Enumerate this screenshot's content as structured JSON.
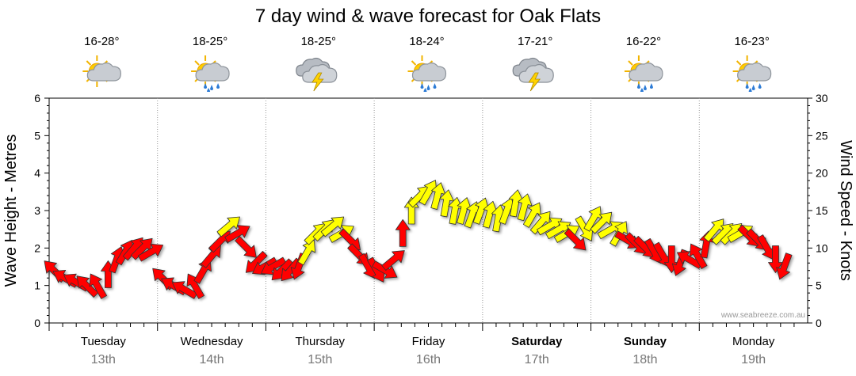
{
  "chart_data": {
    "type": "line",
    "title": "7 day wind & wave forecast for Oak Flats",
    "ylabel_left": "Wave Height - Metres",
    "ylabel_right": "Wind Speed - Knots",
    "ylim_left": [
      0,
      6
    ],
    "ylim_right": [
      0,
      30
    ],
    "yticks_left": [
      "0",
      "1",
      "2",
      "3",
      "4",
      "5",
      "6"
    ],
    "yticks_right": [
      "0",
      "5",
      "10",
      "15",
      "20",
      "25",
      "30"
    ],
    "grid": "vertical-dotted",
    "watermark": "www.seabreeze.com.au",
    "colors": {
      "low_wind": "#ff0000",
      "moderate_wind": "#ffff00",
      "outline": "#333333",
      "grid": "#999999"
    },
    "days": [
      {
        "day": "Tuesday",
        "date": "13th",
        "temp": "16-28°",
        "icon": "partly-cloudy-icon",
        "bold": false
      },
      {
        "day": "Wednesday",
        "date": "14th",
        "temp": "18-25°",
        "icon": "showers-icon",
        "bold": false
      },
      {
        "day": "Thursday",
        "date": "15th",
        "temp": "18-25°",
        "icon": "thunderstorm-icon",
        "bold": false
      },
      {
        "day": "Friday",
        "date": "16th",
        "temp": "18-24°",
        "icon": "showers-icon",
        "bold": false
      },
      {
        "day": "Saturday",
        "date": "17th",
        "temp": "17-21°",
        "icon": "thunderstorm-icon",
        "bold": true
      },
      {
        "day": "Sunday",
        "date": "18th",
        "temp": "16-22°",
        "icon": "showers-icon",
        "bold": true
      },
      {
        "day": "Monday",
        "date": "19th",
        "temp": "16-23°",
        "icon": "showers-icon",
        "bold": false
      }
    ],
    "series": [
      {
        "name": "Wind",
        "points": [
          [
            0.0,
            7.0,
            315,
            "r"
          ],
          [
            0.1,
            6.0,
            300,
            "r"
          ],
          [
            0.2,
            5.5,
            300,
            "r"
          ],
          [
            0.3,
            5.0,
            315,
            "r"
          ],
          [
            0.4,
            5.0,
            330,
            "r"
          ],
          [
            0.5,
            6.5,
            0,
            "r"
          ],
          [
            0.58,
            8.5,
            20,
            "r"
          ],
          [
            0.66,
            9.5,
            30,
            "r"
          ],
          [
            0.74,
            10.0,
            40,
            "r"
          ],
          [
            0.82,
            10.0,
            45,
            "r"
          ],
          [
            0.9,
            9.5,
            60,
            "r"
          ],
          [
            1.0,
            6.0,
            315,
            "r"
          ],
          [
            1.1,
            5.0,
            300,
            "r"
          ],
          [
            1.2,
            4.5,
            300,
            "r"
          ],
          [
            1.3,
            5.0,
            330,
            "r"
          ],
          [
            1.38,
            7.0,
            30,
            "r"
          ],
          [
            1.46,
            9.0,
            40,
            "r"
          ],
          [
            1.54,
            11.0,
            45,
            "r"
          ],
          [
            1.62,
            13.0,
            50,
            "y"
          ],
          [
            1.7,
            12.0,
            60,
            "r"
          ],
          [
            1.78,
            10.0,
            135,
            "r"
          ],
          [
            1.86,
            8.0,
            225,
            "r"
          ],
          [
            1.94,
            7.5,
            240,
            "r"
          ],
          [
            2.02,
            7.5,
            240,
            "r"
          ],
          [
            2.1,
            7.0,
            225,
            "r"
          ],
          [
            2.18,
            7.0,
            220,
            "r"
          ],
          [
            2.26,
            7.5,
            200,
            "r"
          ],
          [
            2.34,
            9.5,
            30,
            "y"
          ],
          [
            2.42,
            12.0,
            45,
            "y"
          ],
          [
            2.5,
            12.5,
            45,
            "y"
          ],
          [
            2.58,
            13.0,
            50,
            "y"
          ],
          [
            2.66,
            12.0,
            60,
            "y"
          ],
          [
            2.74,
            11.0,
            135,
            "r"
          ],
          [
            2.82,
            9.0,
            135,
            "r"
          ],
          [
            2.9,
            7.5,
            150,
            "r"
          ],
          [
            2.98,
            7.0,
            150,
            "r"
          ],
          [
            3.06,
            7.0,
            120,
            "r"
          ],
          [
            3.14,
            8.5,
            50,
            "r"
          ],
          [
            3.22,
            12.0,
            0,
            "r"
          ],
          [
            3.3,
            15.0,
            0,
            "y"
          ],
          [
            3.38,
            17.0,
            45,
            "y"
          ],
          [
            3.46,
            17.5,
            30,
            "y"
          ],
          [
            3.54,
            17.0,
            15,
            "y"
          ],
          [
            3.62,
            16.0,
            10,
            "y"
          ],
          [
            3.7,
            15.0,
            10,
            "y"
          ],
          [
            3.78,
            15.0,
            15,
            "y"
          ],
          [
            3.86,
            14.5,
            20,
            "y"
          ],
          [
            3.94,
            15.0,
            20,
            "y"
          ],
          [
            4.02,
            14.5,
            15,
            "y"
          ],
          [
            4.1,
            14.0,
            10,
            "y"
          ],
          [
            4.18,
            15.0,
            20,
            "y"
          ],
          [
            4.26,
            16.0,
            10,
            "y"
          ],
          [
            4.34,
            15.5,
            15,
            "y"
          ],
          [
            4.42,
            14.5,
            30,
            "y"
          ],
          [
            4.5,
            13.5,
            40,
            "y"
          ],
          [
            4.58,
            13.0,
            60,
            "y"
          ],
          [
            4.66,
            12.5,
            60,
            "y"
          ],
          [
            4.74,
            12.0,
            60,
            "y"
          ],
          [
            4.82,
            11.0,
            135,
            "r"
          ],
          [
            4.9,
            12.5,
            150,
            "y"
          ],
          [
            4.98,
            14.0,
            30,
            "y"
          ],
          [
            5.06,
            13.5,
            45,
            "y"
          ],
          [
            5.14,
            12.5,
            60,
            "y"
          ],
          [
            5.22,
            12.0,
            30,
            "y"
          ],
          [
            5.3,
            11.0,
            120,
            "r"
          ],
          [
            5.38,
            10.5,
            135,
            "r"
          ],
          [
            5.46,
            10.0,
            135,
            "r"
          ],
          [
            5.54,
            9.5,
            150,
            "r"
          ],
          [
            5.62,
            9.0,
            150,
            "r"
          ],
          [
            5.7,
            8.5,
            180,
            "r"
          ],
          [
            5.78,
            8.0,
            200,
            "r"
          ],
          [
            5.86,
            8.5,
            300,
            "r"
          ],
          [
            5.94,
            9.0,
            330,
            "r"
          ],
          [
            6.02,
            10.5,
            10,
            "r"
          ],
          [
            6.1,
            12.5,
            40,
            "y"
          ],
          [
            6.18,
            12.0,
            45,
            "y"
          ],
          [
            6.26,
            12.0,
            45,
            "y"
          ],
          [
            6.34,
            12.0,
            60,
            "y"
          ],
          [
            6.42,
            11.5,
            135,
            "r"
          ],
          [
            6.5,
            11.0,
            135,
            "r"
          ],
          [
            6.58,
            10.0,
            150,
            "r"
          ],
          [
            6.66,
            8.5,
            180,
            "r"
          ],
          [
            6.74,
            7.5,
            200,
            "r"
          ]
        ]
      }
    ]
  }
}
